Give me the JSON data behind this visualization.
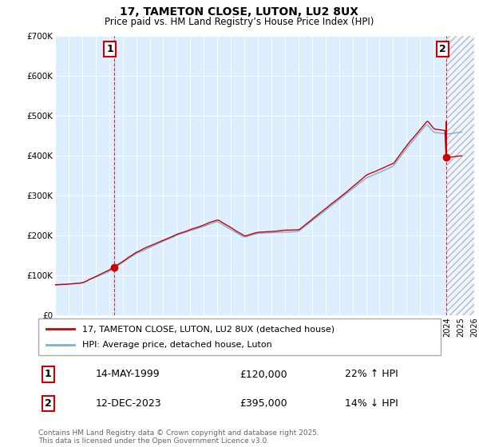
{
  "title": "17, TAMETON CLOSE, LUTON, LU2 8UX",
  "subtitle": "Price paid vs. HM Land Registry’s House Price Index (HPI)",
  "legend_line1": "17, TAMETON CLOSE, LUTON, LU2 8UX (detached house)",
  "legend_line2": "HPI: Average price, detached house, Luton",
  "sale1_date": "14-MAY-1999",
  "sale1_price": "£120,000",
  "sale1_hpi": "22% ↑ HPI",
  "sale2_date": "12-DEC-2023",
  "sale2_price": "£395,000",
  "sale2_hpi": "14% ↓ HPI",
  "footer": "Contains HM Land Registry data © Crown copyright and database right 2025.\nThis data is licensed under the Open Government Licence v3.0.",
  "red_color": "#cc0000",
  "blue_color": "#7bafd4",
  "bg_color": "#ddeeff",
  "ylim_min": 0,
  "ylim_max": 700000,
  "yticks": [
    0,
    100000,
    200000,
    300000,
    400000,
    500000,
    600000,
    700000
  ],
  "ytick_labels": [
    "£0",
    "£100K",
    "£200K",
    "£300K",
    "£400K",
    "£500K",
    "£600K",
    "£700K"
  ],
  "sale1_x": 1999.37,
  "sale1_y": 120000,
  "sale2_x": 2023.95,
  "sale2_y": 395000,
  "xmin": 1995,
  "xmax": 2026,
  "hatch_start": 2024.0
}
